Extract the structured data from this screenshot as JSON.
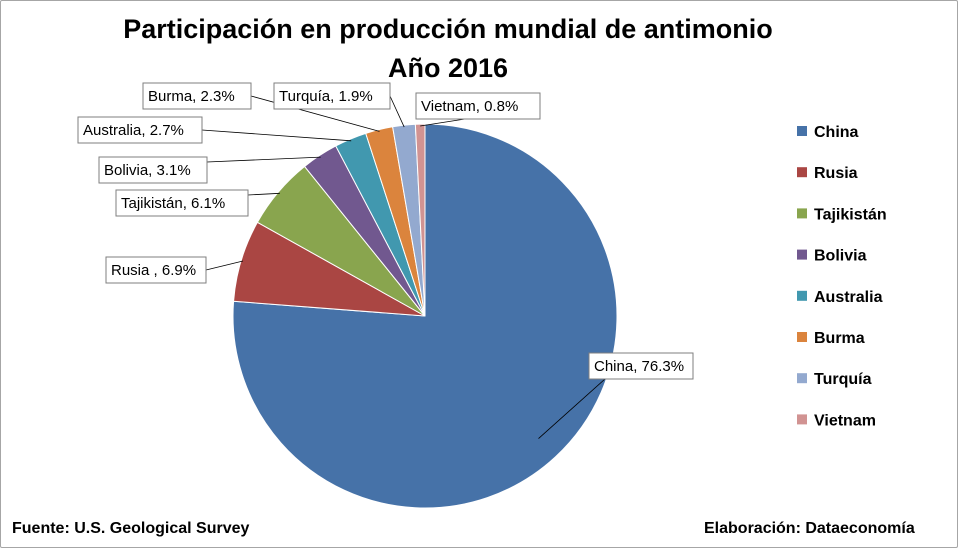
{
  "chart_data": {
    "type": "pie",
    "title": "Participación en producción mundial de antimonio",
    "subtitle": "Año 2016",
    "categories": [
      "China",
      "Rusia",
      "Tajikistán",
      "Bolivia",
      "Australia",
      "Burma",
      "Turquía",
      "Vietnam"
    ],
    "values": [
      76.3,
      6.9,
      6.1,
      3.1,
      2.7,
      2.3,
      1.9,
      0.8
    ],
    "data_labels": [
      "China, 76.3%",
      "Rusia , 6.9%",
      "Tajikistán, 6.1%",
      "Bolivia, 3.1%",
      "Australia, 2.7%",
      "Burma, 2.3%",
      "Turquía, 1.9%",
      "Vietnam, 0.8%"
    ],
    "colors": [
      "#4672a8",
      "#aa4643",
      "#89a54e",
      "#71588f",
      "#4198af",
      "#db843d",
      "#93a9cf",
      "#d19392"
    ],
    "legend_position": "right"
  },
  "footer": {
    "source": "Fuente: U.S. Geological Survey",
    "credit": "Elaboración: Dataeconomía"
  }
}
